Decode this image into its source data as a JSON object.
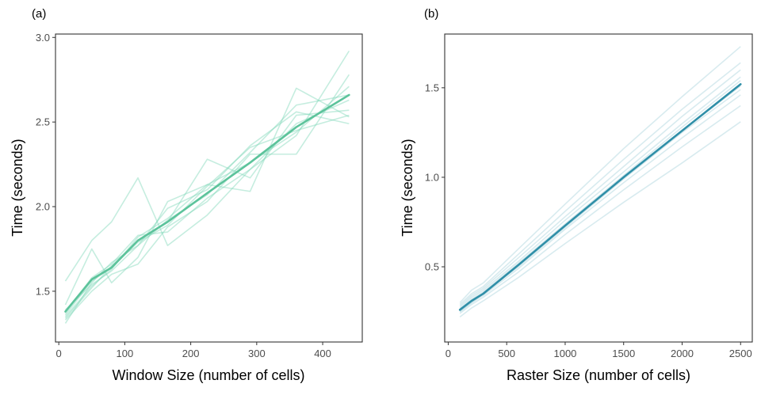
{
  "chart_data": [
    {
      "type": "line",
      "panel_label": "(a)",
      "xlabel": "Window Size (number of cells)",
      "ylabel": "Time (seconds)",
      "xlim": [
        -5,
        460
      ],
      "ylim": [
        1.2,
        3.02
      ],
      "xticks": [
        0,
        100,
        200,
        300,
        400
      ],
      "xtick_labels": [
        "0",
        "100",
        "200",
        "300",
        "400"
      ],
      "yticks": [
        1.5,
        2.0,
        2.5,
        3.0
      ],
      "ytick_labels": [
        "1.5",
        "2.0",
        "2.5",
        "3.0"
      ],
      "grid": false,
      "colors": {
        "faint": "#7fd8b8",
        "mean": "#5cc39b"
      },
      "x": [
        10,
        50,
        80,
        120,
        165,
        225,
        290,
        360,
        440
      ],
      "series": [
        {
          "values": [
            1.56,
            1.8,
            1.91,
            2.17,
            1.77,
            1.95,
            2.22,
            2.42,
            2.92
          ]
        },
        {
          "values": [
            1.42,
            1.75,
            1.55,
            1.7,
            2.03,
            2.13,
            2.09,
            2.7,
            2.53
          ]
        },
        {
          "values": [
            1.34,
            1.52,
            1.65,
            1.8,
            1.91,
            2.28,
            2.17,
            2.54,
            2.57
          ]
        },
        {
          "values": [
            1.39,
            1.54,
            1.62,
            1.77,
            1.99,
            2.1,
            2.36,
            2.56,
            2.49
          ]
        },
        {
          "values": [
            1.33,
            1.5,
            1.6,
            1.66,
            1.88,
            2.03,
            2.31,
            2.31,
            2.78
          ]
        },
        {
          "values": [
            1.37,
            1.58,
            1.66,
            1.83,
            1.85,
            2.05,
            2.22,
            2.49,
            2.63
          ]
        },
        {
          "values": [
            1.35,
            1.53,
            1.63,
            1.82,
            1.93,
            2.13,
            2.26,
            2.44,
            2.71
          ]
        },
        {
          "values": [
            1.31,
            1.55,
            1.67,
            1.77,
            1.92,
            2.07,
            2.32,
            2.6,
            2.66
          ]
        },
        {
          "values": [
            1.36,
            1.56,
            1.64,
            1.79,
            1.89,
            2.12,
            2.35,
            2.45,
            2.54
          ]
        }
      ],
      "mean": [
        1.38,
        1.57,
        1.64,
        1.8,
        1.91,
        2.08,
        2.26,
        2.47,
        2.66
      ]
    },
    {
      "type": "line",
      "panel_label": "(b)",
      "xlabel": "Raster Size (number of cells)",
      "ylabel": "Time (seconds)",
      "xlim": [
        -30,
        2600
      ],
      "ylim": [
        0.08,
        1.8
      ],
      "xticks": [
        0,
        500,
        1000,
        1500,
        2000,
        2500
      ],
      "xtick_labels": [
        "0",
        "500",
        "1000",
        "1500",
        "2000",
        "2500"
      ],
      "yticks": [
        0.5,
        1.0,
        1.5
      ],
      "ytick_labels": [
        "0.5",
        "1.0",
        "1.5"
      ],
      "grid": false,
      "colors": {
        "faint": "#a9d3dc",
        "mean": "#2f8fa8"
      },
      "x": [
        100,
        200,
        300,
        600,
        1000,
        1500,
        2000,
        2500
      ],
      "series": [
        {
          "values": [
            0.22,
            0.27,
            0.31,
            0.44,
            0.63,
            0.86,
            1.08,
            1.31
          ]
        },
        {
          "values": [
            0.24,
            0.29,
            0.33,
            0.47,
            0.68,
            0.93,
            1.17,
            1.4
          ]
        },
        {
          "values": [
            0.25,
            0.3,
            0.34,
            0.49,
            0.71,
            0.97,
            1.22,
            1.46
          ]
        },
        {
          "values": [
            0.26,
            0.31,
            0.35,
            0.51,
            0.73,
            1.0,
            1.26,
            1.51
          ]
        },
        {
          "values": [
            0.27,
            0.33,
            0.37,
            0.53,
            0.76,
            1.03,
            1.3,
            1.56
          ]
        },
        {
          "values": [
            0.28,
            0.34,
            0.38,
            0.55,
            0.78,
            1.06,
            1.34,
            1.6
          ]
        },
        {
          "values": [
            0.29,
            0.35,
            0.39,
            0.57,
            0.81,
            1.1,
            1.38,
            1.64
          ]
        },
        {
          "values": [
            0.3,
            0.37,
            0.41,
            0.6,
            0.85,
            1.16,
            1.45,
            1.73
          ]
        },
        {
          "values": [
            0.26,
            0.32,
            0.36,
            0.52,
            0.74,
            1.01,
            1.28,
            1.54
          ]
        },
        {
          "values": [
            0.25,
            0.3,
            0.35,
            0.5,
            0.72,
            0.99,
            1.25,
            1.49
          ]
        }
      ],
      "mean": [
        0.26,
        0.31,
        0.35,
        0.51,
        0.73,
        1.0,
        1.26,
        1.52
      ]
    }
  ]
}
